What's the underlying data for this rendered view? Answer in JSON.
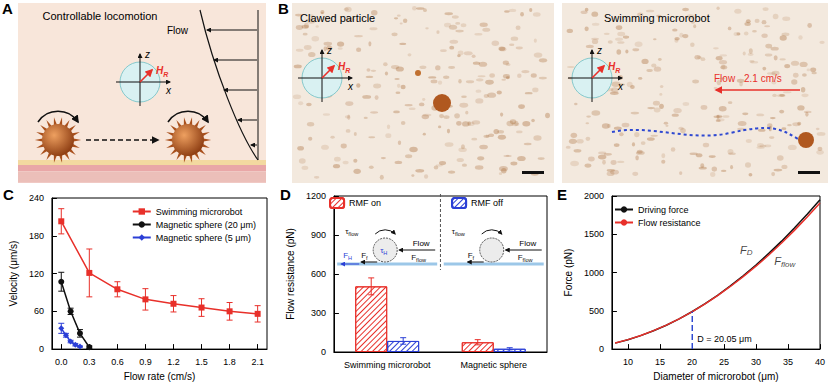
{
  "panels": [
    {
      "label": "A",
      "title": "Controllable locomotion",
      "flow": "Flow",
      "axis_x": "x",
      "axis_z": "z",
      "field": {
        "symbol": "H",
        "sub": "R"
      }
    },
    {
      "label": "B",
      "left_title": "Clawed particle",
      "right_title": "Swimming microrobot",
      "axis_x": "x",
      "axis_z": "z",
      "field": {
        "symbol": "H",
        "sub": "R"
      },
      "flow": "Flow",
      "flow_rate": "2.1 cm/s"
    }
  ],
  "chart_data": [
    {
      "panel": "C",
      "type": "line",
      "x_label": "Flow rate (cm/s)",
      "y_label": "Velocity (μm/s)",
      "xlim": [
        -0.1,
        2.2
      ],
      "xticks": [
        {
          "value": 0,
          "label": "0.0"
        },
        0.3,
        0.6,
        0.9,
        1.2,
        1.5,
        1.8,
        2.1
      ],
      "ylim": [
        0,
        240
      ],
      "yticks": [
        0,
        60,
        120,
        180,
        240
      ],
      "grid": false,
      "legend": "upper right",
      "series": [
        {
          "name": "Swimming microrobot",
          "color": "#e8302a",
          "marker": "square",
          "x": [
            0,
            0.3,
            0.6,
            0.9,
            1.2,
            1.5,
            1.8,
            2.1
          ],
          "values": [
            203,
            121,
            95,
            79,
            72,
            66,
            60,
            56
          ],
          "errors": [
            20,
            38,
            12,
            17,
            13,
            14,
            14,
            13
          ]
        },
        {
          "name": "Magnetic sphere (20 μm)",
          "color": "#111111",
          "marker": "circle",
          "x": [
            0,
            0.1,
            0.2,
            0.3
          ],
          "values": [
            107,
            60,
            25,
            3
          ],
          "errors": [
            15,
            5,
            6,
            2
          ]
        },
        {
          "name": "Magnetic sphere (5 μm)",
          "color": "#2b3fd6",
          "marker": "diamond",
          "x": [
            0,
            0.05,
            0.1,
            0.15,
            0.2
          ],
          "values": [
            33,
            22,
            12,
            7,
            4
          ],
          "errors": [
            8,
            3,
            2,
            2,
            1
          ]
        }
      ]
    },
    {
      "panel": "D",
      "type": "bar",
      "y_label": "Flow resistance (pN)",
      "categories": [
        "Swimming microrobot",
        "Magnetic sphere"
      ],
      "ylim": [
        0,
        1200
      ],
      "yticks": [
        0,
        300,
        600,
        900,
        1200
      ],
      "grid": false,
      "legend": "top",
      "series": [
        {
          "name": "RMF on",
          "color": "#e8302a",
          "values": [
            505,
            75
          ],
          "errors": [
            65,
            20
          ]
        },
        {
          "name": "RMF off",
          "color": "#2b3fd6",
          "values": [
            85,
            25
          ],
          "errors": [
            25,
            8
          ]
        }
      ],
      "insets": [
        {
          "flow": "Flow",
          "tau_flow": {
            "symbol": "τ",
            "sub": "flow"
          },
          "tau_H": {
            "symbol": "τ",
            "sub": "H"
          },
          "F_H": {
            "symbol": "F",
            "sub": "H"
          },
          "F_f": {
            "symbol": "F",
            "sub": "f"
          },
          "F_flow": {
            "symbol": "F",
            "sub": "flow"
          }
        },
        {
          "flow": "Flow",
          "tau_flow": {
            "symbol": "τ",
            "sub": "flow"
          },
          "F_f": {
            "symbol": "F",
            "sub": "f"
          },
          "F_flow": {
            "symbol": "F",
            "sub": "flow"
          }
        }
      ]
    },
    {
      "panel": "E",
      "type": "line",
      "x_label": "Diameter of microrobot (μm)",
      "y_label": "Force (pN)",
      "xlim": [
        7.5,
        40
      ],
      "xticks": [
        10,
        15,
        20,
        25,
        30,
        35,
        40
      ],
      "ylim": [
        0,
        2000
      ],
      "yticks": [
        0,
        500,
        1000,
        1500,
        2000
      ],
      "grid": false,
      "legend": "upper left",
      "x": [
        8,
        10,
        12,
        14,
        16,
        18,
        20,
        22,
        24,
        26,
        28,
        30,
        32,
        34,
        36,
        38,
        40
      ],
      "series": [
        {
          "name": "Driving force",
          "color": "#111111",
          "values": [
            78,
            122,
            176,
            239,
            312,
            395,
            488,
            590,
            703,
            825,
            957,
            1098,
            1250,
            1410,
            1581,
            1762,
            1952
          ]
        },
        {
          "name": "Flow resistance",
          "color": "#e8302a",
          "values": [
            80,
            124,
            178,
            241,
            313,
            395,
            487,
            588,
            698,
            818,
            946,
            1083,
            1230,
            1386,
            1551,
            1725,
            1908
          ]
        }
      ],
      "annotations": [
        {
          "symbol": "F",
          "sub": "D",
          "x": 28.5,
          "y": 1300,
          "color": "#111111"
        },
        {
          "symbol": "F",
          "sub": "flow",
          "x": 34.5,
          "y": 1150,
          "color": "#111111"
        }
      ],
      "marker_line": {
        "x": 20.05,
        "y": 488,
        "label": "D = 20.05 μm",
        "color": "#2f49d1"
      }
    }
  ]
}
